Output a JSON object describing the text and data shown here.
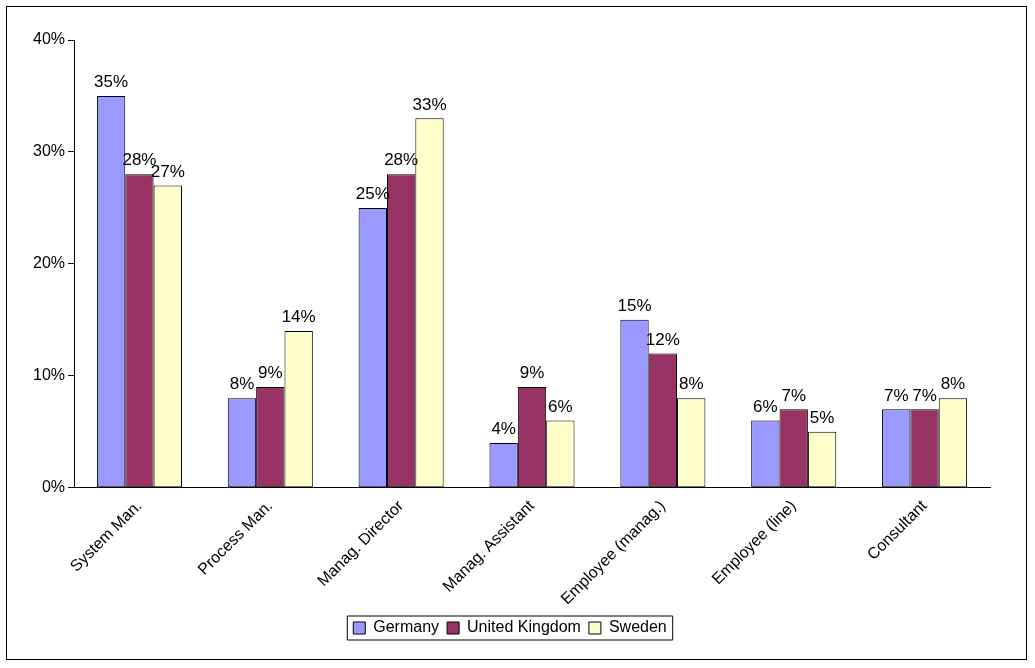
{
  "chart_data": {
    "type": "bar",
    "categories": [
      "System Man.",
      "Process Man.",
      "Manag. Director",
      "Manag. Assistant",
      "Employee (manag.)",
      "Employee (line)",
      "Consultant"
    ],
    "series": [
      {
        "name": "Germany",
        "color": "#9999ff",
        "values": [
          35,
          8,
          25,
          4,
          15,
          6,
          7
        ],
        "value_labels": [
          "35%",
          "8%",
          "25%",
          "4%",
          "15%",
          "6%",
          "7%"
        ]
      },
      {
        "name": "United Kingdom",
        "color": "#993366",
        "values": [
          28,
          9,
          28,
          9,
          12,
          7,
          7
        ],
        "value_labels": [
          "28%",
          "9%",
          "28%",
          "9%",
          "12%",
          "7%",
          "7%"
        ]
      },
      {
        "name": "Sweden",
        "color": "#ffffcc",
        "values": [
          27,
          14,
          33,
          6,
          8,
          5,
          8
        ],
        "value_labels": [
          "27%",
          "14%",
          "33%",
          "6%",
          "8%",
          "5%",
          "8%"
        ]
      }
    ],
    "ylim": [
      0,
      40
    ],
    "yticks": [
      {
        "value": 0,
        "label": "0%"
      },
      {
        "value": 10,
        "label": "10%"
      },
      {
        "value": 20,
        "label": "20%"
      },
      {
        "value": 30,
        "label": "30%"
      },
      {
        "value": 40,
        "label": "40%"
      }
    ],
    "grid": false,
    "legend": "bottom"
  }
}
